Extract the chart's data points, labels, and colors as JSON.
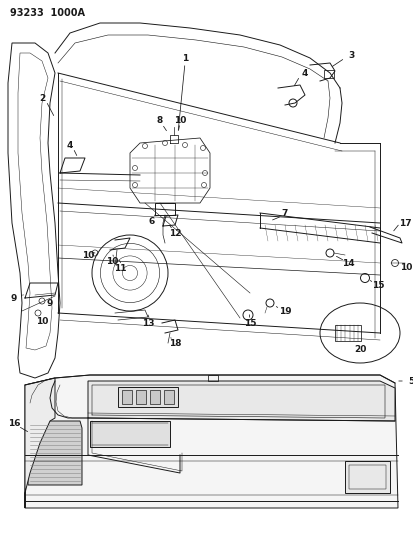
{
  "title": "93233  1000A",
  "bg": "#ffffff",
  "lc": "#1a1a1a",
  "gray": "#888888",
  "ltgray": "#cccccc",
  "fig_w": 4.14,
  "fig_h": 5.33,
  "dpi": 100
}
